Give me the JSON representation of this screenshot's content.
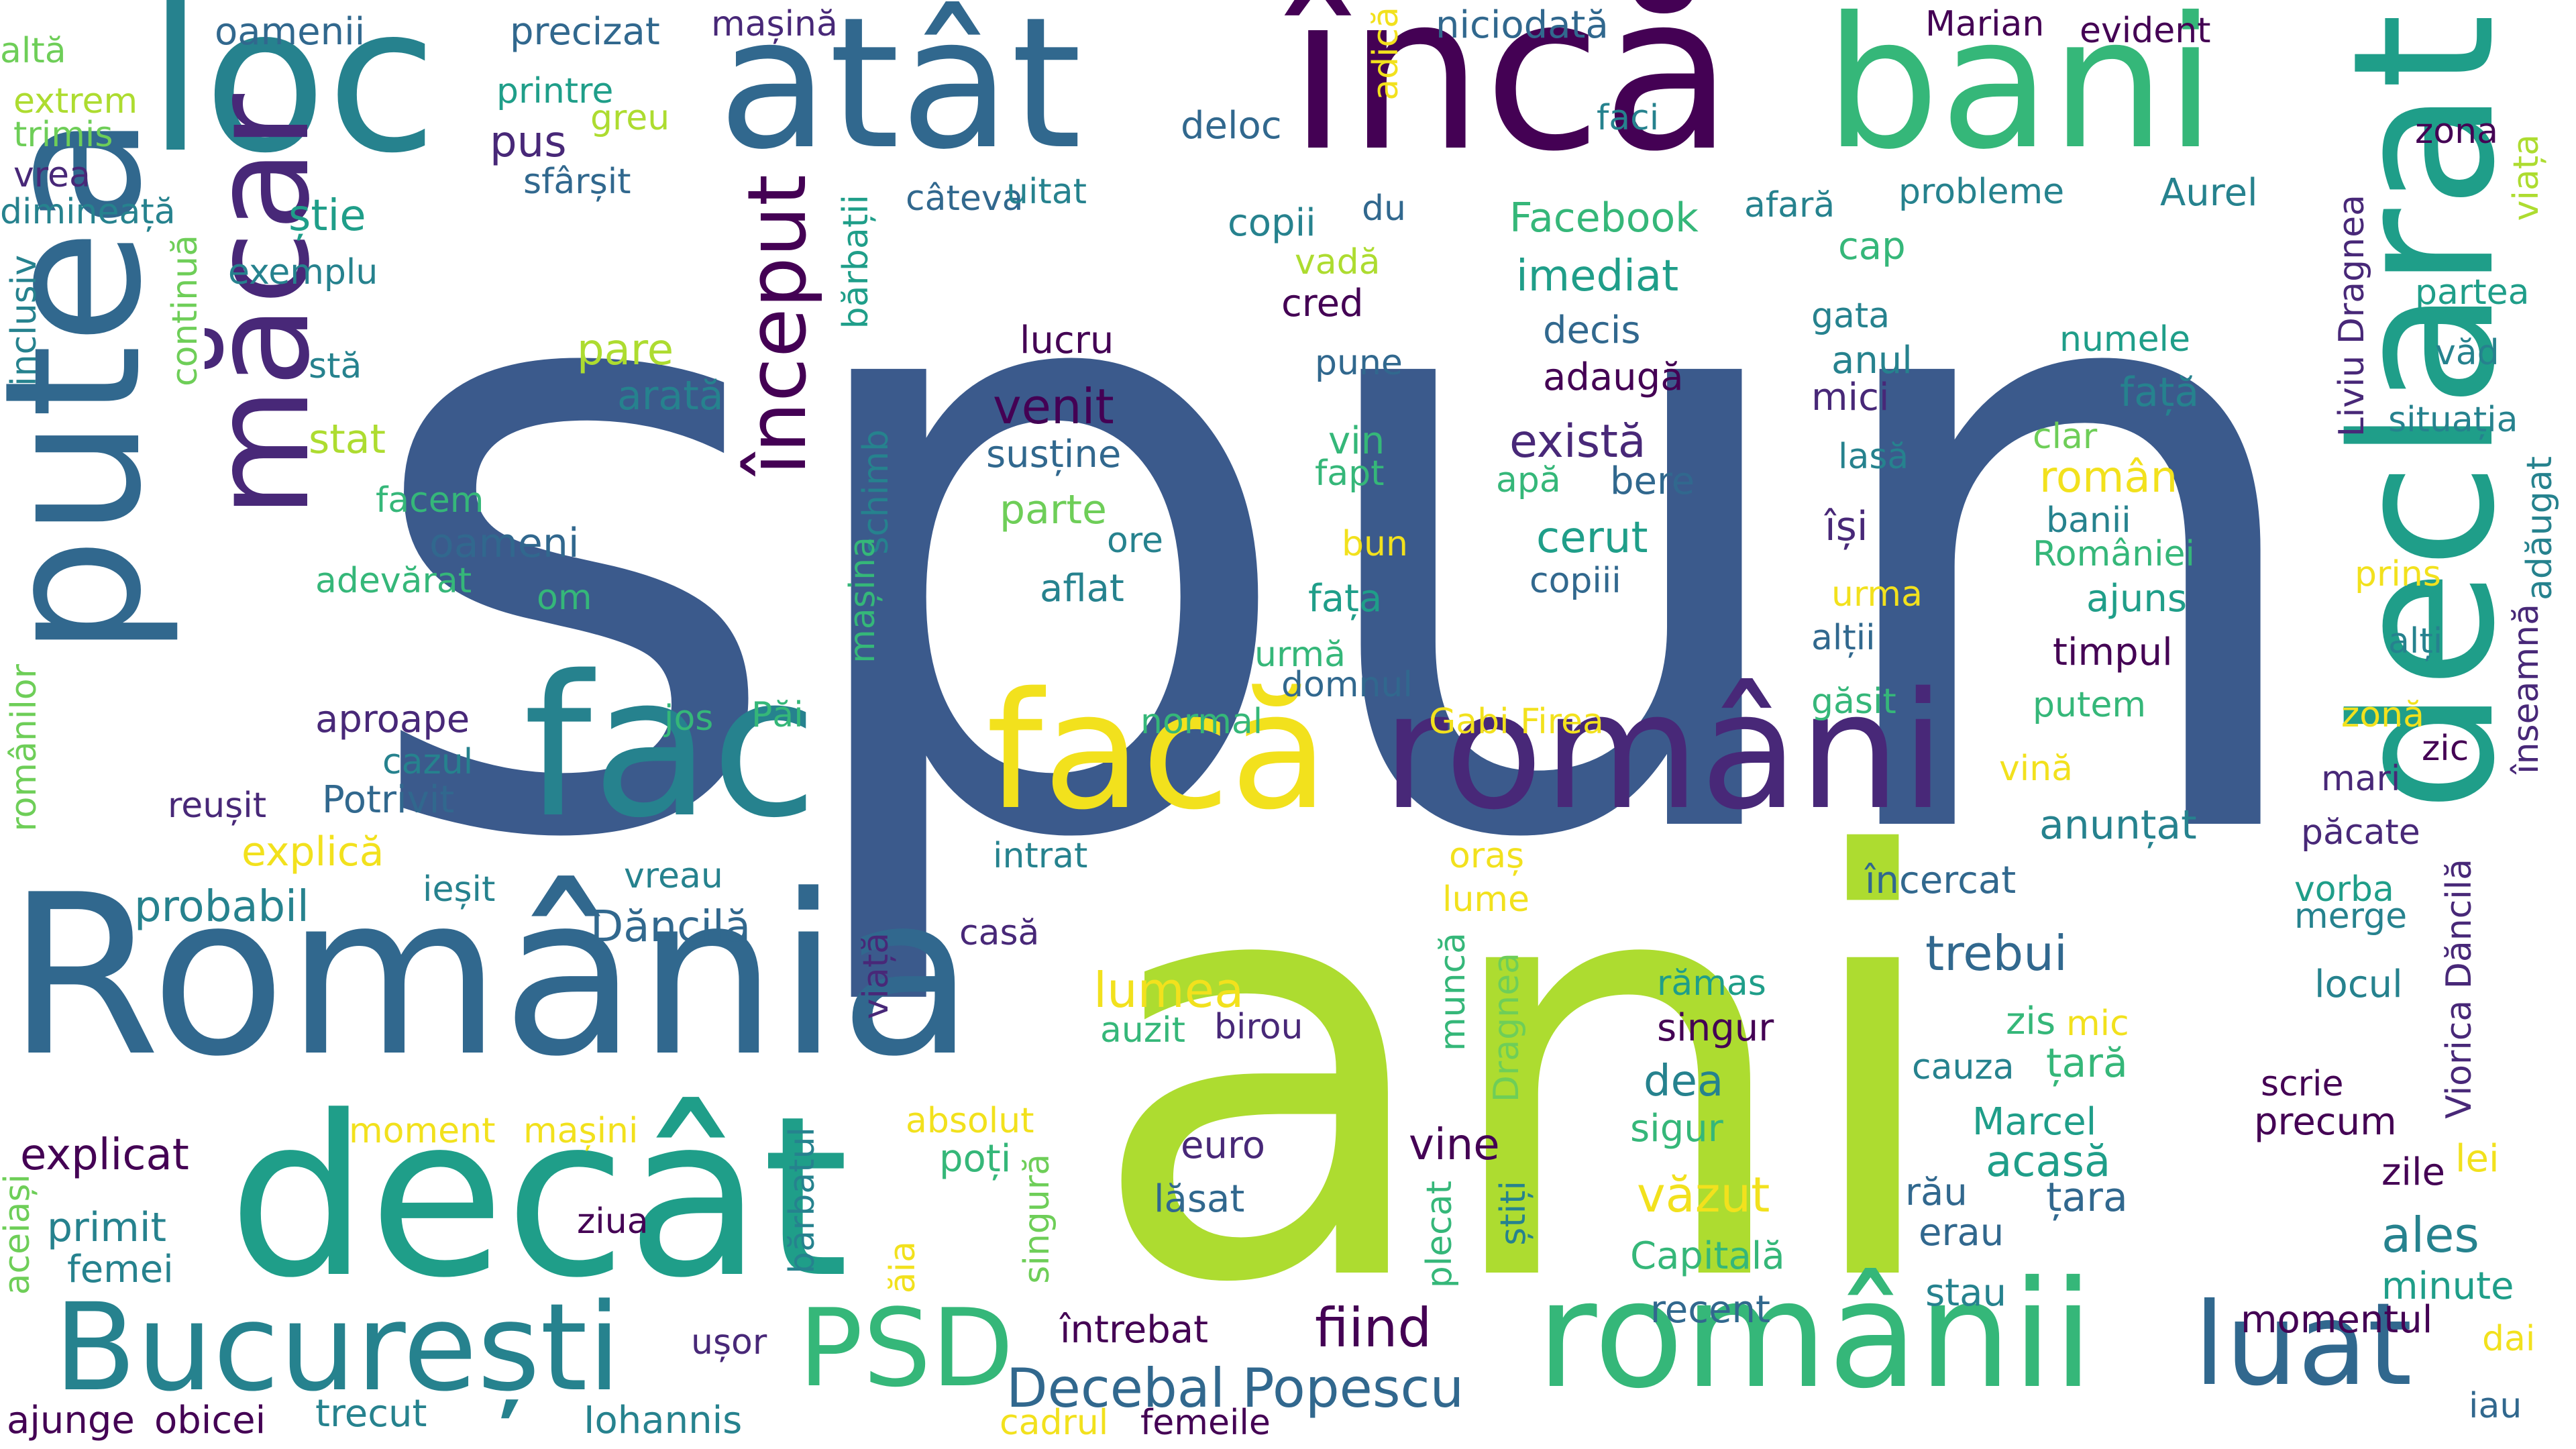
{
  "palette": {
    "c1": "#3b5a8c",
    "c2": "#1f9e89",
    "c3": "#35b779",
    "c4": "#addc30",
    "c5": "#440154",
    "c6": "#31688e",
    "c7": "#26828e",
    "c8": "#6ece58",
    "c9": "#482878",
    "c10": "#f2e11d"
  },
  "words": [
    {
      "text": "spun",
      "color": "c1",
      "orient": "h"
    },
    {
      "text": "ani",
      "color": "c4",
      "orient": "h"
    },
    {
      "text": "România",
      "color": "c6",
      "orient": "h"
    },
    {
      "text": "decât",
      "color": "c2",
      "orient": "h"
    },
    {
      "text": "loc",
      "color": "c7",
      "orient": "h"
    },
    {
      "text": "atât",
      "color": "c6",
      "orient": "h"
    },
    {
      "text": "încă",
      "color": "c5",
      "orient": "h"
    },
    {
      "text": "bani",
      "color": "c3",
      "orient": "h"
    },
    {
      "text": "declarat",
      "color": "c2",
      "orient": "v"
    },
    {
      "text": "putea",
      "color": "c6",
      "orient": "v"
    },
    {
      "text": "măcar",
      "color": "c9",
      "orient": "v"
    },
    {
      "text": "fac",
      "color": "c7",
      "orient": "h"
    },
    {
      "text": "facă",
      "color": "c10",
      "orient": "h"
    },
    {
      "text": "români",
      "color": "c9",
      "orient": "h"
    },
    {
      "text": "românii",
      "color": "c3",
      "orient": "h"
    },
    {
      "text": "București",
      "color": "c7",
      "orient": "h"
    },
    {
      "text": "PSD",
      "color": "c3",
      "orient": "h"
    },
    {
      "text": "luat",
      "color": "c6",
      "orient": "h"
    },
    {
      "text": "început",
      "color": "c5",
      "orient": "v"
    },
    {
      "text": "Decebal Popescu",
      "color": "c6",
      "orient": "h"
    },
    {
      "text": "fiind",
      "color": "c5",
      "orient": "h"
    },
    {
      "text": "altă",
      "color": "c8",
      "orient": "h"
    },
    {
      "text": "oamenii",
      "color": "c6",
      "orient": "h"
    },
    {
      "text": "precizat",
      "color": "c6",
      "orient": "h"
    },
    {
      "text": "mașină",
      "color": "c9",
      "orient": "h"
    },
    {
      "text": "niciodată",
      "color": "c6",
      "orient": "h"
    },
    {
      "text": "Marian",
      "color": "c5",
      "orient": "h"
    },
    {
      "text": "evident",
      "color": "c5",
      "orient": "h"
    },
    {
      "text": "extrem",
      "color": "c4",
      "orient": "h"
    },
    {
      "text": "trimis",
      "color": "c8",
      "orient": "h"
    },
    {
      "text": "printre",
      "color": "c2",
      "orient": "h"
    },
    {
      "text": "greu",
      "color": "c4",
      "orient": "h"
    },
    {
      "text": "pus",
      "color": "c9",
      "orient": "h"
    },
    {
      "text": "deloc",
      "color": "c6",
      "orient": "h"
    },
    {
      "text": "faci",
      "color": "c7",
      "orient": "h"
    },
    {
      "text": "zona",
      "color": "c5",
      "orient": "h"
    },
    {
      "text": "vrea",
      "color": "c9",
      "orient": "h"
    },
    {
      "text": "sfârșit",
      "color": "c6",
      "orient": "h"
    },
    {
      "text": "adică",
      "color": "c10",
      "orient": "v"
    },
    {
      "text": "dimineață",
      "color": "c7",
      "orient": "h"
    },
    {
      "text": "știe",
      "color": "c2",
      "orient": "h"
    },
    {
      "text": "câteva",
      "color": "c6",
      "orient": "h"
    },
    {
      "text": "uitat",
      "color": "c7",
      "orient": "h"
    },
    {
      "text": "probleme",
      "color": "c7",
      "orient": "h"
    },
    {
      "text": "Aurel",
      "color": "c7",
      "orient": "h"
    },
    {
      "text": "afară",
      "color": "c7",
      "orient": "h"
    },
    {
      "text": "Facebook",
      "color": "c3",
      "orient": "h"
    },
    {
      "text": "copii",
      "color": "c7",
      "orient": "h"
    },
    {
      "text": "du",
      "color": "c6",
      "orient": "h"
    },
    {
      "text": "viața",
      "color": "c4",
      "orient": "v"
    },
    {
      "text": "exemplu",
      "color": "c7",
      "orient": "h"
    },
    {
      "text": "cap",
      "color": "c3",
      "orient": "h"
    },
    {
      "text": "vadă",
      "color": "c4",
      "orient": "h"
    },
    {
      "text": "imediat",
      "color": "c2",
      "orient": "h"
    },
    {
      "text": "cred",
      "color": "c5",
      "orient": "h"
    },
    {
      "text": "decis",
      "color": "c6",
      "orient": "h"
    },
    {
      "text": "gata",
      "color": "c7",
      "orient": "h"
    },
    {
      "text": "numele",
      "color": "c2",
      "orient": "h"
    },
    {
      "text": "partea",
      "color": "c2",
      "orient": "h"
    },
    {
      "text": "inclusiv",
      "color": "c7",
      "orient": "v"
    },
    {
      "text": "continuă",
      "color": "c8",
      "orient": "v"
    },
    {
      "text": "bărbații",
      "color": "c2",
      "orient": "v"
    },
    {
      "text": "stă",
      "color": "c7",
      "orient": "h"
    },
    {
      "text": "pare",
      "color": "c4",
      "orient": "h"
    },
    {
      "text": "lucru",
      "color": "c5",
      "orient": "h"
    },
    {
      "text": "pune",
      "color": "c6",
      "orient": "h"
    },
    {
      "text": "adaugă",
      "color": "c5",
      "orient": "h"
    },
    {
      "text": "anul",
      "color": "c7",
      "orient": "h"
    },
    {
      "text": "față",
      "color": "c7",
      "orient": "h"
    },
    {
      "text": "văd",
      "color": "c7",
      "orient": "h"
    },
    {
      "text": "arată",
      "color": "c7",
      "orient": "h"
    },
    {
      "text": "venit",
      "color": "c5",
      "orient": "h"
    },
    {
      "text": "mici",
      "color": "c9",
      "orient": "h"
    },
    {
      "text": "situația",
      "color": "c7",
      "orient": "h"
    },
    {
      "text": "stat",
      "color": "c4",
      "orient": "h"
    },
    {
      "text": "susține",
      "color": "c6",
      "orient": "h"
    },
    {
      "text": "vin",
      "color": "c3",
      "orient": "h"
    },
    {
      "text": "există",
      "color": "c9",
      "orient": "h"
    },
    {
      "text": "clar",
      "color": "c8",
      "orient": "h"
    },
    {
      "text": "lasă",
      "color": "c7",
      "orient": "h"
    },
    {
      "text": "Liviu Dragnea",
      "color": "c9",
      "orient": "v"
    },
    {
      "text": "adăugat",
      "color": "c7",
      "orient": "v"
    },
    {
      "text": "schimb",
      "color": "c7",
      "orient": "v"
    },
    {
      "text": "fapt",
      "color": "c3",
      "orient": "h"
    },
    {
      "text": "apă",
      "color": "c3",
      "orient": "h"
    },
    {
      "text": "bere",
      "color": "c6",
      "orient": "h"
    },
    {
      "text": "român",
      "color": "c10",
      "orient": "h"
    },
    {
      "text": "banii",
      "color": "c7",
      "orient": "h"
    },
    {
      "text": "facem",
      "color": "c3",
      "orient": "h"
    },
    {
      "text": "parte",
      "color": "c8",
      "orient": "h"
    },
    {
      "text": "oameni",
      "color": "c6",
      "orient": "h"
    },
    {
      "text": "ore",
      "color": "c7",
      "orient": "h"
    },
    {
      "text": "bun",
      "color": "c10",
      "orient": "h"
    },
    {
      "text": "cerut",
      "color": "c2",
      "orient": "h"
    },
    {
      "text": "își",
      "color": "c9",
      "orient": "h"
    },
    {
      "text": "României",
      "color": "c3",
      "orient": "h"
    },
    {
      "text": "mașina",
      "color": "c3",
      "orient": "v"
    },
    {
      "text": "adevărat",
      "color": "c3",
      "orient": "h"
    },
    {
      "text": "om",
      "color": "c3",
      "orient": "h"
    },
    {
      "text": "aflat",
      "color": "c7",
      "orient": "h"
    },
    {
      "text": "copiii",
      "color": "c6",
      "orient": "h"
    },
    {
      "text": "fața",
      "color": "c2",
      "orient": "h"
    },
    {
      "text": "urma",
      "color": "c10",
      "orient": "h"
    },
    {
      "text": "ajuns",
      "color": "c2",
      "orient": "h"
    },
    {
      "text": "prins",
      "color": "c10",
      "orient": "h"
    },
    {
      "text": "românilor",
      "color": "c8",
      "orient": "v"
    },
    {
      "text": "înseamnă",
      "color": "c9",
      "orient": "v"
    },
    {
      "text": "alții",
      "color": "c6",
      "orient": "h"
    },
    {
      "text": "timpul",
      "color": "c5",
      "orient": "h"
    },
    {
      "text": "urmă",
      "color": "c3",
      "orient": "h"
    },
    {
      "text": "domnul",
      "color": "c6",
      "orient": "h"
    },
    {
      "text": "alți",
      "color": "c7",
      "orient": "h"
    },
    {
      "text": "aproape",
      "color": "c9",
      "orient": "h"
    },
    {
      "text": "jos",
      "color": "c3",
      "orient": "h"
    },
    {
      "text": "Păi",
      "color": "c3",
      "orient": "h"
    },
    {
      "text": "normal",
      "color": "c3",
      "orient": "h"
    },
    {
      "text": "Gabi Firea",
      "color": "c10",
      "orient": "h"
    },
    {
      "text": "găsit",
      "color": "c3",
      "orient": "h"
    },
    {
      "text": "putem",
      "color": "c3",
      "orient": "h"
    },
    {
      "text": "zonă",
      "color": "c10",
      "orient": "h"
    },
    {
      "text": "cazul",
      "color": "c7",
      "orient": "h"
    },
    {
      "text": "zic",
      "color": "c5",
      "orient": "h"
    },
    {
      "text": "vină",
      "color": "c10",
      "orient": "h"
    },
    {
      "text": "mari",
      "color": "c9",
      "orient": "h"
    },
    {
      "text": "reușit",
      "color": "c9",
      "orient": "h"
    },
    {
      "text": "Potrivit",
      "color": "c6",
      "orient": "h"
    },
    {
      "text": "anunțat",
      "color": "c7",
      "orient": "h"
    },
    {
      "text": "păcate",
      "color": "c9",
      "orient": "h"
    },
    {
      "text": "explică",
      "color": "c10",
      "orient": "h"
    },
    {
      "text": "vreau",
      "color": "c7",
      "orient": "h"
    },
    {
      "text": "intrat",
      "color": "c7",
      "orient": "h"
    },
    {
      "text": "oraș",
      "color": "c10",
      "orient": "h"
    },
    {
      "text": "ieșit",
      "color": "c7",
      "orient": "h"
    },
    {
      "text": "lume",
      "color": "c10",
      "orient": "h"
    },
    {
      "text": "încercat",
      "color": "c6",
      "orient": "h"
    },
    {
      "text": "vorba",
      "color": "c2",
      "orient": "h"
    },
    {
      "text": "probabil",
      "color": "c7",
      "orient": "h"
    },
    {
      "text": "Dăncilă",
      "color": "c6",
      "orient": "h"
    },
    {
      "text": "casă",
      "color": "c9",
      "orient": "h"
    },
    {
      "text": "merge",
      "color": "c7",
      "orient": "h"
    },
    {
      "text": "trebui",
      "color": "c6",
      "orient": "h"
    },
    {
      "text": "viață",
      "color": "c9",
      "orient": "v"
    },
    {
      "text": "muncă",
      "color": "c3",
      "orient": "v"
    },
    {
      "text": "Dragnea",
      "color": "c8",
      "orient": "v"
    },
    {
      "text": "Viorica Dăncilă",
      "color": "c9",
      "orient": "v"
    },
    {
      "text": "lumea",
      "color": "c10",
      "orient": "h"
    },
    {
      "text": "rămas",
      "color": "c2",
      "orient": "h"
    },
    {
      "text": "locul",
      "color": "c7",
      "orient": "h"
    },
    {
      "text": "auzit",
      "color": "c3",
      "orient": "h"
    },
    {
      "text": "birou",
      "color": "c9",
      "orient": "h"
    },
    {
      "text": "singur",
      "color": "c5",
      "orient": "h"
    },
    {
      "text": "zis",
      "color": "c3",
      "orient": "h"
    },
    {
      "text": "mic",
      "color": "c10",
      "orient": "h"
    },
    {
      "text": "cauza",
      "color": "c7",
      "orient": "h"
    },
    {
      "text": "țară",
      "color": "c3",
      "orient": "h"
    },
    {
      "text": "dea",
      "color": "c7",
      "orient": "h"
    },
    {
      "text": "scrie",
      "color": "c5",
      "orient": "h"
    },
    {
      "text": "moment",
      "color": "c10",
      "orient": "h"
    },
    {
      "text": "mașini",
      "color": "c10",
      "orient": "h"
    },
    {
      "text": "absolut",
      "color": "c10",
      "orient": "h"
    },
    {
      "text": "sigur",
      "color": "c3",
      "orient": "h"
    },
    {
      "text": "precum",
      "color": "c5",
      "orient": "h"
    },
    {
      "text": "explicat",
      "color": "c5",
      "orient": "h"
    },
    {
      "text": "Marcel",
      "color": "c2",
      "orient": "h"
    },
    {
      "text": "euro",
      "color": "c9",
      "orient": "h"
    },
    {
      "text": "vine",
      "color": "c5",
      "orient": "h"
    },
    {
      "text": "poți",
      "color": "c3",
      "orient": "h"
    },
    {
      "text": "acasă",
      "color": "c2",
      "orient": "h"
    },
    {
      "text": "zile",
      "color": "c5",
      "orient": "h"
    },
    {
      "text": "lei",
      "color": "c10",
      "orient": "h"
    },
    {
      "text": "primit",
      "color": "c7",
      "orient": "h"
    },
    {
      "text": "lăsat",
      "color": "c6",
      "orient": "h"
    },
    {
      "text": "rău",
      "color": "c6",
      "orient": "h"
    },
    {
      "text": "țara",
      "color": "c6",
      "orient": "h"
    },
    {
      "text": "ales",
      "color": "c7",
      "orient": "h"
    },
    {
      "text": "ziua",
      "color": "c5",
      "orient": "h"
    },
    {
      "text": "văzut",
      "color": "c10",
      "orient": "h"
    },
    {
      "text": "erau",
      "color": "c6",
      "orient": "h"
    },
    {
      "text": "femei",
      "color": "c7",
      "orient": "h"
    },
    {
      "text": "Capitală",
      "color": "c3",
      "orient": "h"
    },
    {
      "text": "stau",
      "color": "c7",
      "orient": "h"
    },
    {
      "text": "minute",
      "color": "c2",
      "orient": "h"
    },
    {
      "text": "aceiași",
      "color": "c8",
      "orient": "v"
    },
    {
      "text": "bărbatul",
      "color": "c7",
      "orient": "v"
    },
    {
      "text": "singură",
      "color": "c8",
      "orient": "v"
    },
    {
      "text": "știți",
      "color": "c7",
      "orient": "v"
    },
    {
      "text": "plecat",
      "color": "c3",
      "orient": "v"
    },
    {
      "text": "ăia",
      "color": "c10",
      "orient": "v"
    },
    {
      "text": "întrebat",
      "color": "c5",
      "orient": "h"
    },
    {
      "text": "recent",
      "color": "c6",
      "orient": "h"
    },
    {
      "text": "momentul",
      "color": "c5",
      "orient": "h"
    },
    {
      "text": "ușor",
      "color": "c9",
      "orient": "h"
    },
    {
      "text": "dai",
      "color": "c10",
      "orient": "h"
    },
    {
      "text": "ajunge",
      "color": "c5",
      "orient": "h"
    },
    {
      "text": "obicei",
      "color": "c5",
      "orient": "h"
    },
    {
      "text": "trecut",
      "color": "c7",
      "orient": "h"
    },
    {
      "text": "Iohannis",
      "color": "c7",
      "orient": "h"
    },
    {
      "text": "cadrul",
      "color": "c10",
      "orient": "h"
    },
    {
      "text": "femeile",
      "color": "c5",
      "orient": "h"
    },
    {
      "text": "iau",
      "color": "c6",
      "orient": "h"
    }
  ]
}
